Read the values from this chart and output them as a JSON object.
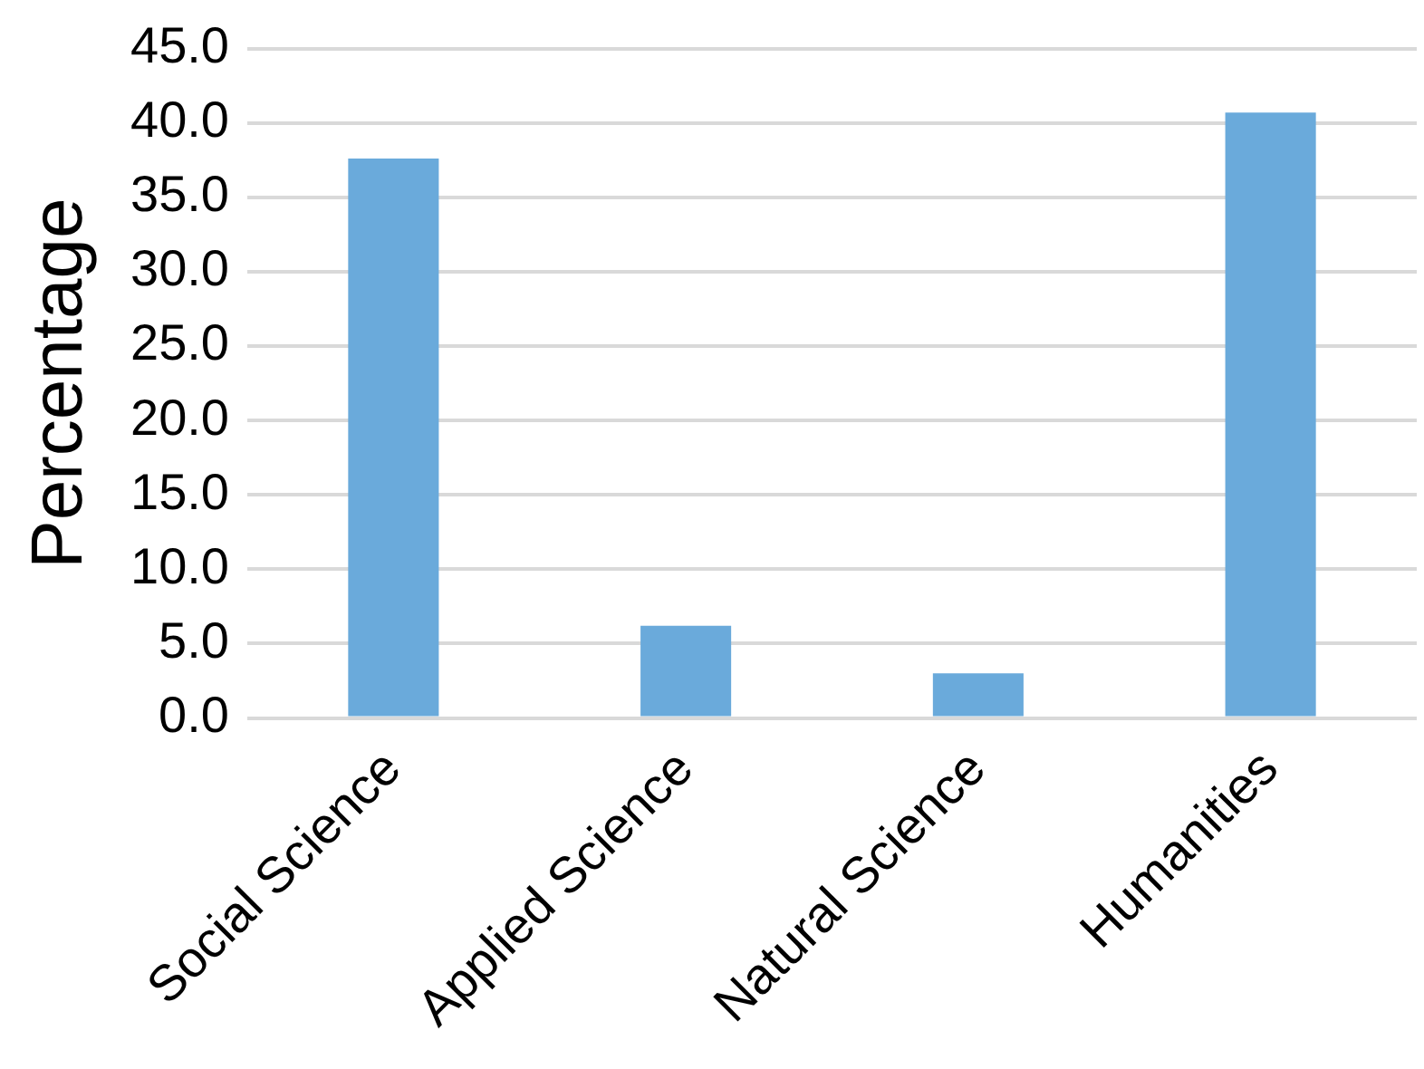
{
  "chart_data": {
    "type": "bar",
    "ylabel": "Percentage",
    "categories": [
      "Social Science",
      "Applied Science",
      "Natural Science",
      "Humanities"
    ],
    "values": [
      37.6,
      6.2,
      3.0,
      40.7
    ],
    "color": "#6aaadb",
    "ylim": [
      0,
      45
    ],
    "yticks": [
      {
        "value": 0,
        "label": "0.0"
      },
      {
        "value": 5,
        "label": "5.0"
      },
      {
        "value": 10,
        "label": "10.0"
      },
      {
        "value": 15,
        "label": "15.0"
      },
      {
        "value": 20,
        "label": "20.0"
      },
      {
        "value": 25,
        "label": "25.0"
      },
      {
        "value": 30,
        "label": "30.0"
      },
      {
        "value": 35,
        "label": "35.0"
      },
      {
        "value": 40,
        "label": "40.0"
      },
      {
        "value": 45,
        "label": "45.0"
      }
    ],
    "grid": "y",
    "legend": false
  }
}
